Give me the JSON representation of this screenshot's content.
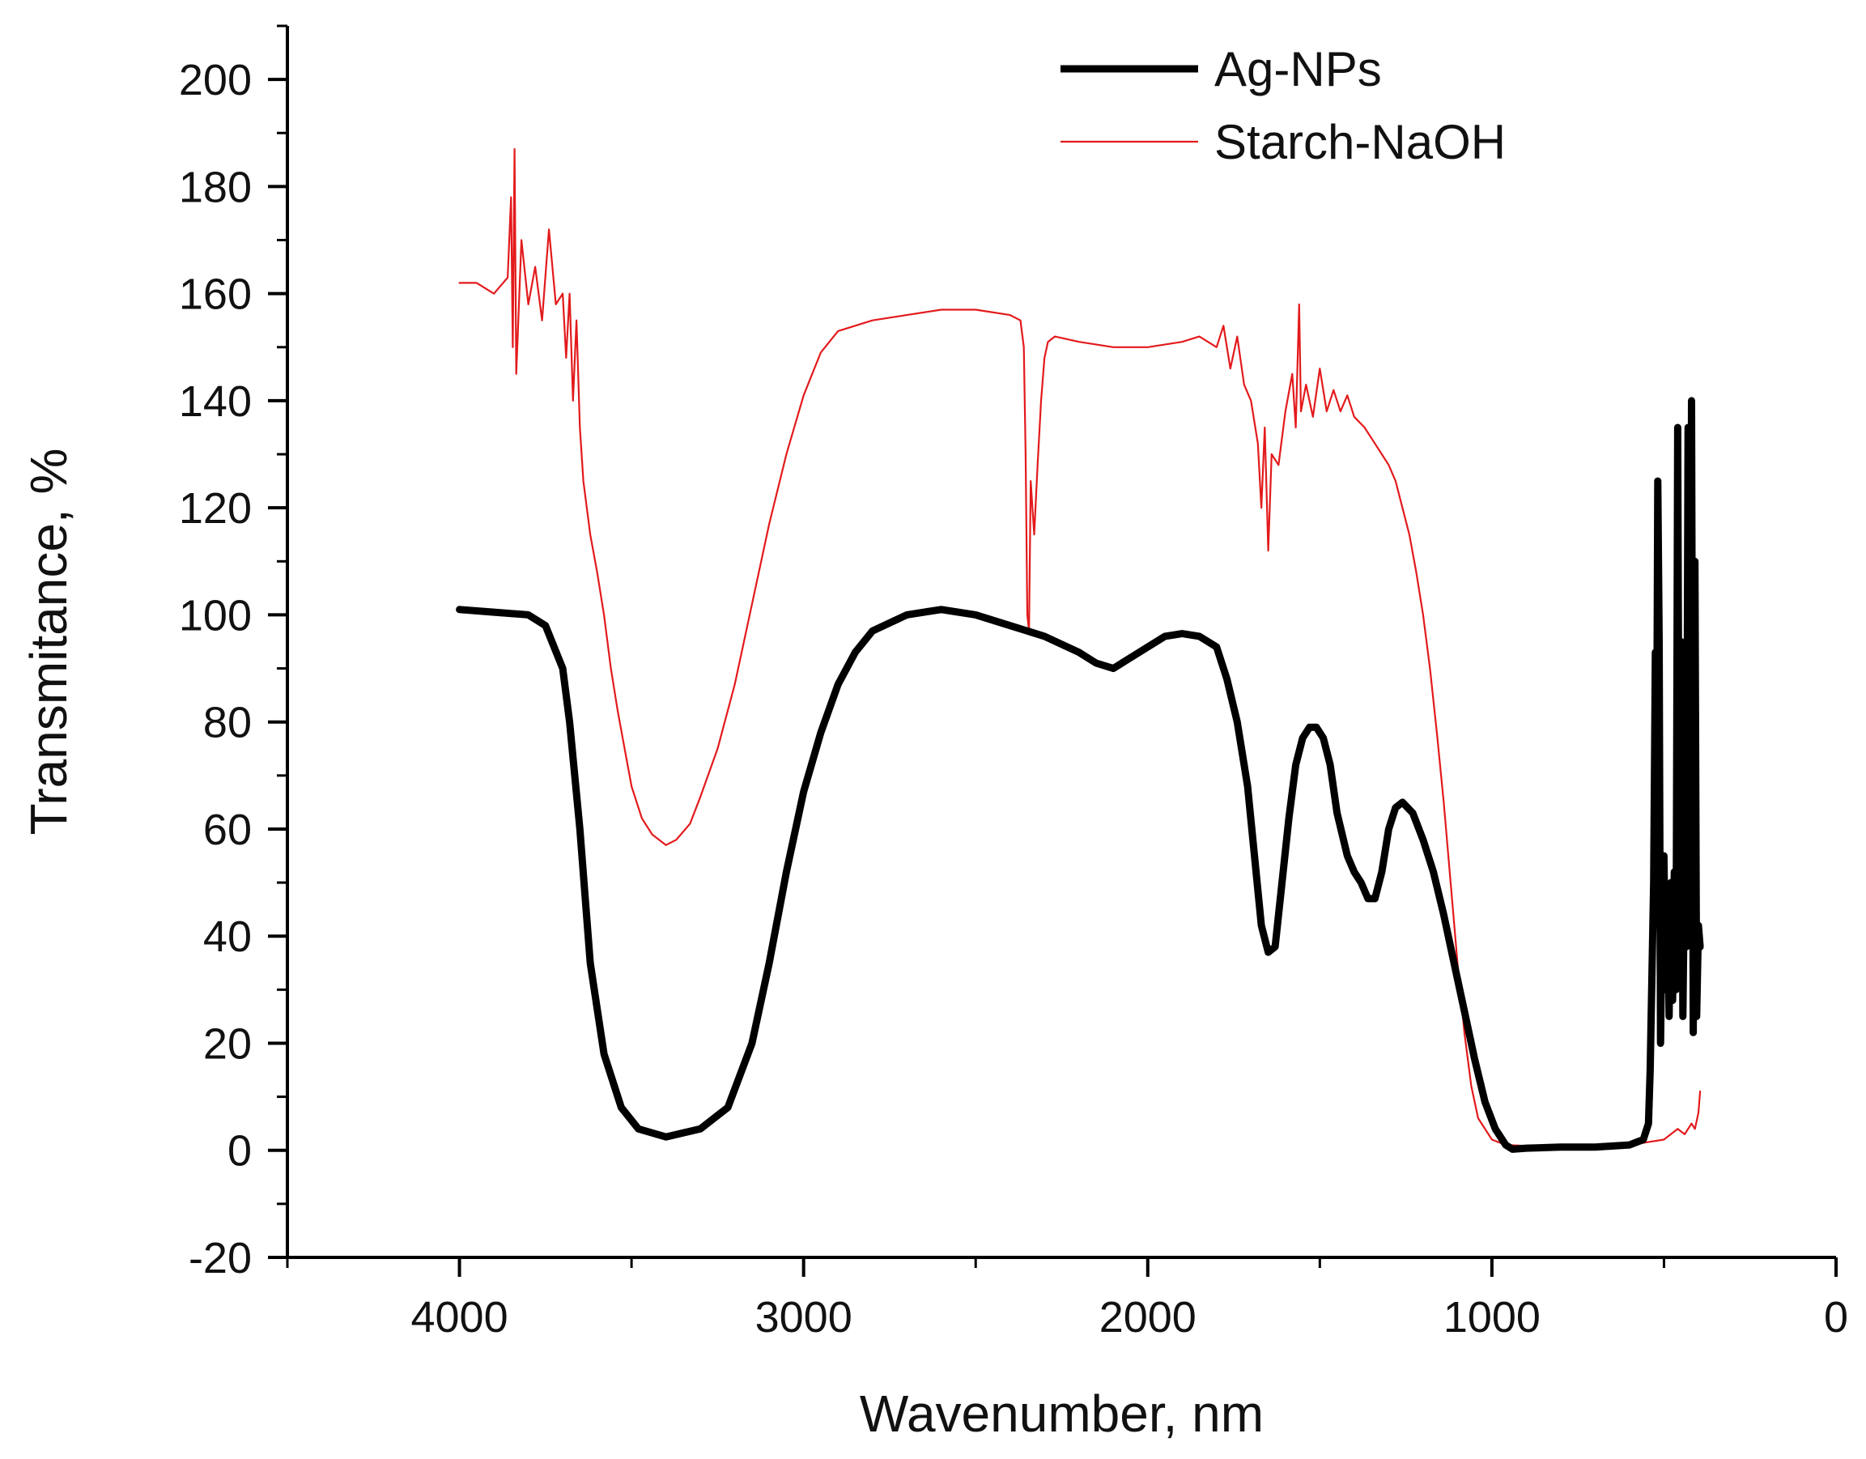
{
  "colors": {
    "background": "#ffffff",
    "axis": "#000000",
    "ag_series": "#000000",
    "starch_series": "#e31a1c"
  },
  "legend": {
    "items": [
      {
        "label": "Ag-NPs",
        "color": "#000000"
      },
      {
        "label": "Starch-NaOH",
        "color": "#e31a1c"
      }
    ],
    "placement": "top-right"
  },
  "chart_data": {
    "type": "line",
    "title": "",
    "xlabel": "Wavenumber, nm",
    "ylabel": "Transmitance, %",
    "xlim": [
      4500,
      0
    ],
    "ylim": [
      -20,
      210
    ],
    "x_ticks": [
      4000,
      3000,
      2000,
      1000,
      0
    ],
    "x_tick_labels": [
      "4000",
      "3000",
      "2000",
      "1000",
      "0"
    ],
    "y_ticks": [
      -20,
      0,
      20,
      40,
      60,
      80,
      100,
      120,
      140,
      160,
      180,
      200
    ],
    "y_tick_labels": [
      "-20",
      "0",
      "20",
      "40",
      "60",
      "80",
      "100",
      "120",
      "140",
      "160",
      "180",
      "200"
    ],
    "grid": false,
    "series": [
      {
        "name": "Ag-NPs",
        "color": "#000000",
        "style": "thick",
        "points": [
          [
            4000,
            101
          ],
          [
            3900,
            100.5
          ],
          [
            3800,
            100
          ],
          [
            3750,
            98
          ],
          [
            3700,
            90
          ],
          [
            3680,
            80
          ],
          [
            3650,
            60
          ],
          [
            3620,
            35
          ],
          [
            3580,
            18
          ],
          [
            3530,
            8
          ],
          [
            3480,
            4
          ],
          [
            3400,
            2.5
          ],
          [
            3300,
            4
          ],
          [
            3220,
            8
          ],
          [
            3150,
            20
          ],
          [
            3100,
            35
          ],
          [
            3050,
            52
          ],
          [
            3000,
            67
          ],
          [
            2950,
            78
          ],
          [
            2900,
            87
          ],
          [
            2850,
            93
          ],
          [
            2800,
            97
          ],
          [
            2700,
            100
          ],
          [
            2600,
            101
          ],
          [
            2500,
            100
          ],
          [
            2400,
            98
          ],
          [
            2300,
            96
          ],
          [
            2200,
            93
          ],
          [
            2150,
            91
          ],
          [
            2100,
            90
          ],
          [
            2050,
            92
          ],
          [
            2000,
            94
          ],
          [
            1950,
            96
          ],
          [
            1900,
            96.5
          ],
          [
            1850,
            96
          ],
          [
            1800,
            94
          ],
          [
            1770,
            88
          ],
          [
            1740,
            80
          ],
          [
            1710,
            68
          ],
          [
            1690,
            55
          ],
          [
            1670,
            42
          ],
          [
            1650,
            37
          ],
          [
            1630,
            38
          ],
          [
            1610,
            50
          ],
          [
            1590,
            62
          ],
          [
            1570,
            72
          ],
          [
            1550,
            77
          ],
          [
            1530,
            79
          ],
          [
            1510,
            79
          ],
          [
            1490,
            77
          ],
          [
            1470,
            72
          ],
          [
            1450,
            63
          ],
          [
            1420,
            55
          ],
          [
            1400,
            52
          ],
          [
            1380,
            50
          ],
          [
            1360,
            47
          ],
          [
            1340,
            47
          ],
          [
            1320,
            52
          ],
          [
            1300,
            60
          ],
          [
            1280,
            64
          ],
          [
            1260,
            65
          ],
          [
            1230,
            63
          ],
          [
            1200,
            58
          ],
          [
            1170,
            52
          ],
          [
            1140,
            44
          ],
          [
            1110,
            35
          ],
          [
            1080,
            26
          ],
          [
            1050,
            17
          ],
          [
            1020,
            9
          ],
          [
            990,
            4
          ],
          [
            960,
            1
          ],
          [
            940,
            0.2
          ],
          [
            900,
            0.4
          ],
          [
            800,
            0.6
          ],
          [
            700,
            0.6
          ],
          [
            600,
            1
          ],
          [
            560,
            2
          ],
          [
            545,
            5
          ],
          [
            540,
            15
          ],
          [
            530,
            50
          ],
          [
            525,
            93
          ],
          [
            522,
            60
          ],
          [
            518,
            125
          ],
          [
            514,
            95
          ],
          [
            510,
            20
          ],
          [
            505,
            45
          ],
          [
            500,
            55
          ],
          [
            495,
            30
          ],
          [
            490,
            48
          ],
          [
            485,
            25
          ],
          [
            480,
            50
          ],
          [
            475,
            28
          ],
          [
            470,
            52
          ],
          [
            465,
            30
          ],
          [
            460,
            135
          ],
          [
            455,
            35
          ],
          [
            450,
            95
          ],
          [
            445,
            25
          ],
          [
            440,
            55
          ],
          [
            435,
            38
          ],
          [
            430,
            135
          ],
          [
            425,
            40
          ],
          [
            420,
            140
          ],
          [
            415,
            22
          ],
          [
            410,
            110
          ],
          [
            405,
            25
          ],
          [
            400,
            42
          ],
          [
            395,
            38
          ]
        ]
      },
      {
        "name": "Starch-NaOH",
        "color": "#e31a1c",
        "style": "thin",
        "points": [
          [
            4000,
            162
          ],
          [
            3950,
            162
          ],
          [
            3900,
            160
          ],
          [
            3860,
            163
          ],
          [
            3850,
            178
          ],
          [
            3845,
            150
          ],
          [
            3840,
            187
          ],
          [
            3835,
            145
          ],
          [
            3820,
            170
          ],
          [
            3800,
            158
          ],
          [
            3780,
            165
          ],
          [
            3760,
            155
          ],
          [
            3740,
            172
          ],
          [
            3720,
            158
          ],
          [
            3700,
            160
          ],
          [
            3690,
            148
          ],
          [
            3680,
            160
          ],
          [
            3670,
            140
          ],
          [
            3660,
            155
          ],
          [
            3650,
            135
          ],
          [
            3640,
            125
          ],
          [
            3620,
            115
          ],
          [
            3600,
            108
          ],
          [
            3580,
            100
          ],
          [
            3560,
            90
          ],
          [
            3540,
            82
          ],
          [
            3520,
            75
          ],
          [
            3500,
            68
          ],
          [
            3470,
            62
          ],
          [
            3440,
            59
          ],
          [
            3400,
            57
          ],
          [
            3370,
            58
          ],
          [
            3330,
            61
          ],
          [
            3300,
            66
          ],
          [
            3250,
            75
          ],
          [
            3200,
            87
          ],
          [
            3150,
            102
          ],
          [
            3100,
            117
          ],
          [
            3050,
            130
          ],
          [
            3000,
            141
          ],
          [
            2950,
            149
          ],
          [
            2900,
            153
          ],
          [
            2850,
            154
          ],
          [
            2800,
            155
          ],
          [
            2700,
            156
          ],
          [
            2600,
            157
          ],
          [
            2500,
            157
          ],
          [
            2400,
            156
          ],
          [
            2370,
            155
          ],
          [
            2360,
            150
          ],
          [
            2355,
            130
          ],
          [
            2350,
            100
          ],
          [
            2345,
            97
          ],
          [
            2340,
            125
          ],
          [
            2330,
            115
          ],
          [
            2320,
            128
          ],
          [
            2310,
            140
          ],
          [
            2300,
            148
          ],
          [
            2290,
            151
          ],
          [
            2270,
            152
          ],
          [
            2200,
            151
          ],
          [
            2100,
            150
          ],
          [
            2000,
            150
          ],
          [
            1900,
            151
          ],
          [
            1850,
            152
          ],
          [
            1800,
            150
          ],
          [
            1780,
            154
          ],
          [
            1760,
            146
          ],
          [
            1740,
            152
          ],
          [
            1720,
            143
          ],
          [
            1700,
            140
          ],
          [
            1680,
            132
          ],
          [
            1670,
            120
          ],
          [
            1660,
            135
          ],
          [
            1650,
            112
          ],
          [
            1640,
            130
          ],
          [
            1620,
            128
          ],
          [
            1600,
            138
          ],
          [
            1580,
            145
          ],
          [
            1570,
            135
          ],
          [
            1560,
            158
          ],
          [
            1555,
            138
          ],
          [
            1540,
            143
          ],
          [
            1520,
            137
          ],
          [
            1500,
            146
          ],
          [
            1480,
            138
          ],
          [
            1460,
            142
          ],
          [
            1440,
            138
          ],
          [
            1420,
            141
          ],
          [
            1400,
            137
          ],
          [
            1370,
            135
          ],
          [
            1350,
            133
          ],
          [
            1320,
            130
          ],
          [
            1300,
            128
          ],
          [
            1280,
            125
          ],
          [
            1260,
            120
          ],
          [
            1240,
            115
          ],
          [
            1220,
            108
          ],
          [
            1200,
            100
          ],
          [
            1180,
            90
          ],
          [
            1160,
            78
          ],
          [
            1140,
            65
          ],
          [
            1120,
            50
          ],
          [
            1100,
            35
          ],
          [
            1080,
            22
          ],
          [
            1060,
            12
          ],
          [
            1040,
            6
          ],
          [
            1000,
            2
          ],
          [
            960,
            1
          ],
          [
            900,
            0.8
          ],
          [
            800,
            0.8
          ],
          [
            700,
            0.8
          ],
          [
            600,
            1
          ],
          [
            550,
            1.5
          ],
          [
            500,
            2
          ],
          [
            480,
            3
          ],
          [
            460,
            4
          ],
          [
            440,
            3
          ],
          [
            420,
            5
          ],
          [
            410,
            4
          ],
          [
            400,
            7
          ],
          [
            395,
            11
          ]
        ]
      }
    ]
  }
}
